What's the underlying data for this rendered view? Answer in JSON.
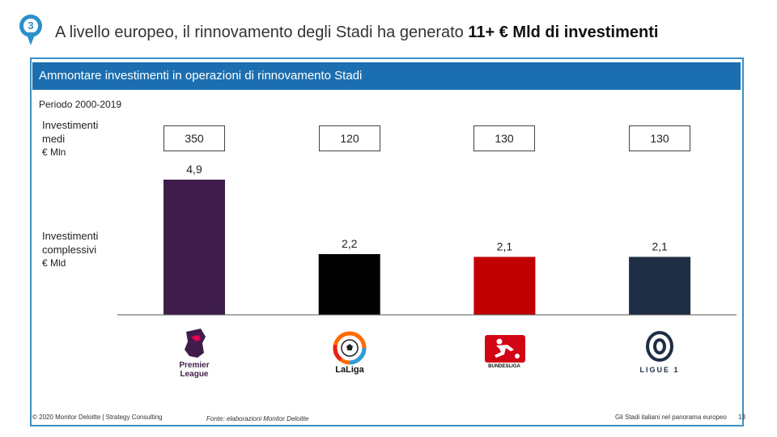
{
  "header": {
    "step_number": "3",
    "title_prefix": "A livello europeo, il rinnovamento degli Stadi ha generato ",
    "title_bold": "11+ € Mld di investimenti"
  },
  "banner": {
    "text": "Ammontare investimenti in operazioni di rinnovamento Stadi"
  },
  "period": "Periodo 2000-2019",
  "row_avg": {
    "label_line1": "Investimenti",
    "label_line2": "medi",
    "unit": "€ Mln"
  },
  "row_total": {
    "label_line1": "Investimenti",
    "label_line2": "complessivi",
    "unit": "€ Mld"
  },
  "leagues": [
    {
      "name": "Premier League",
      "logo_text_1": "Premier",
      "logo_text_2": "League"
    },
    {
      "name": "LaLiga",
      "logo_text_1": "LaLiga"
    },
    {
      "name": "Bundesliga",
      "logo_text_1": "BUNDESLIGA"
    },
    {
      "name": "Ligue 1",
      "logo_text_1": "LIGUE 1"
    }
  ],
  "chart_data": {
    "type": "bar",
    "title": "Ammontare investimenti in operazioni di rinnovamento Stadi",
    "subtitle": "Periodo 2000-2019",
    "categories": [
      "Premier League",
      "LaLiga",
      "Bundesliga",
      "Ligue 1"
    ],
    "series": [
      {
        "name": "Investimenti complessivi (€ Mld)",
        "values": [
          4.9,
          2.2,
          2.1,
          2.1
        ],
        "labels": [
          "4,9",
          "2,2",
          "2,1",
          "2,1"
        ],
        "colors": [
          "#3f1d4b",
          "#000000",
          "#c00000",
          "#1f2d45"
        ]
      },
      {
        "name": "Investimenti medi (€ Mln)",
        "values": [
          350,
          120,
          130,
          130
        ],
        "labels": [
          "350",
          "120",
          "130",
          "130"
        ]
      }
    ],
    "ylim": [
      0,
      5
    ]
  },
  "footer": {
    "copyright": "© 2020 Monitor Deloitte | Strategy Consulting",
    "source": "Fonte: elaborazioni Monitor Deloitte",
    "doc_title": "Gli Stadi italiani nel panorama europeo",
    "page_number": "13"
  }
}
